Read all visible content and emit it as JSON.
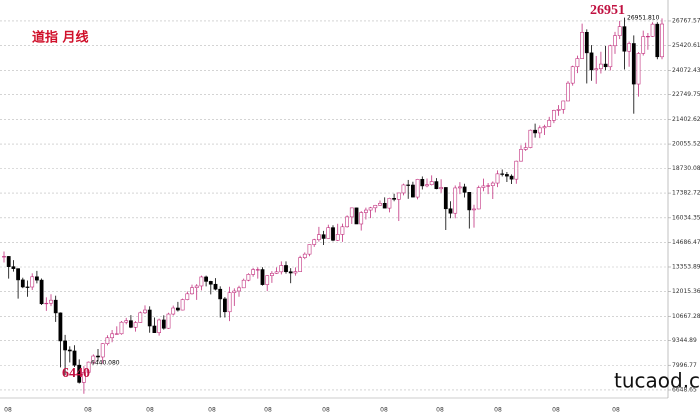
{
  "chart_data": {
    "type": "candlestick",
    "title": "道指  月线",
    "up_color": "#c2307e",
    "down_color": "#000000",
    "ylim": [
      5830,
      27910
    ],
    "yticks": [
      26767.57,
      25420.61,
      24072.43,
      22749.75,
      21402.62,
      20055.52,
      18730.08,
      17382.72,
      16034.35,
      14686.47,
      13353.89,
      12015.36,
      10667.28,
      9344.89,
      7996.77,
      6648.65
    ],
    "grid": true,
    "x_labels": [
      "08",
      "08",
      "08",
      "08",
      "08",
      "08",
      "08",
      "08",
      "08",
      "08",
      "08"
    ],
    "annotations": {
      "high": "26951",
      "high_small": "26951.810",
      "low": "6440",
      "low_small": "6440.080"
    },
    "watermark": "tucaod.com",
    "candles": [
      [
        13895,
        14200,
        13600,
        13930
      ],
      [
        13930,
        13950,
        12720,
        13372
      ],
      [
        13372,
        13730,
        13100,
        13265
      ],
      [
        13265,
        13280,
        11630,
        12650
      ],
      [
        12650,
        12770,
        12200,
        12266
      ],
      [
        12266,
        12620,
        11730,
        12263
      ],
      [
        12263,
        13010,
        12100,
        12820
      ],
      [
        12820,
        13140,
        12460,
        12638
      ],
      [
        12638,
        12730,
        11280,
        11350
      ],
      [
        11350,
        11700,
        10960,
        11378
      ],
      [
        11378,
        11870,
        11220,
        11544
      ],
      [
        11544,
        11790,
        10360,
        10851
      ],
      [
        10851,
        10880,
        7880,
        9325
      ],
      [
        9325,
        9650,
        7450,
        8829
      ],
      [
        8829,
        9030,
        8150,
        8776
      ],
      [
        8776,
        9090,
        7900,
        8001
      ],
      [
        8001,
        8320,
        7000,
        7063
      ],
      [
        7063,
        7950,
        6440.08,
        7609
      ],
      [
        7609,
        8200,
        7440,
        8168
      ],
      [
        8168,
        8590,
        8050,
        8500
      ],
      [
        8500,
        8880,
        8210,
        8447
      ],
      [
        8447,
        9200,
        8090,
        9172
      ],
      [
        9172,
        9630,
        9080,
        9496
      ],
      [
        9496,
        9920,
        9250,
        9712
      ],
      [
        9712,
        10120,
        9670,
        9713
      ],
      [
        9713,
        10410,
        9660,
        10344
      ],
      [
        10344,
        10580,
        10230,
        10428
      ],
      [
        10428,
        10730,
        10020,
        10067
      ],
      [
        10067,
        10400,
        9830,
        10325
      ],
      [
        10325,
        10930,
        10300,
        10857
      ],
      [
        10857,
        11260,
        10790,
        11009
      ],
      [
        11009,
        11210,
        9770,
        10137
      ],
      [
        10137,
        10600,
        9760,
        9774
      ],
      [
        9774,
        10540,
        9610,
        10466
      ],
      [
        10466,
        10720,
        9940,
        10015
      ],
      [
        10015,
        10860,
        9980,
        10788
      ],
      [
        10788,
        11250,
        10710,
        11118
      ],
      [
        11118,
        11450,
        10930,
        11006
      ],
      [
        11006,
        11630,
        10990,
        11578
      ],
      [
        11578,
        12020,
        11540,
        11892
      ],
      [
        11892,
        12390,
        11850,
        12226
      ],
      [
        12226,
        12420,
        11560,
        12320
      ],
      [
        12320,
        12880,
        12080,
        12811
      ],
      [
        12811,
        12880,
        12300,
        12570
      ],
      [
        12570,
        12600,
        11860,
        12414
      ],
      [
        12414,
        12750,
        12080,
        12143
      ],
      [
        12143,
        12300,
        10600,
        11614
      ],
      [
        11614,
        11720,
        10600,
        10913
      ],
      [
        10913,
        12280,
        10400,
        11955
      ],
      [
        11955,
        12190,
        11230,
        12046
      ],
      [
        12046,
        12330,
        11730,
        12218
      ],
      [
        12218,
        12720,
        12210,
        12633
      ],
      [
        12633,
        13010,
        12580,
        12952
      ],
      [
        12952,
        13300,
        12820,
        13212
      ],
      [
        13212,
        13340,
        12720,
        13214
      ],
      [
        13214,
        13340,
        12340,
        12393
      ],
      [
        12393,
        12900,
        12040,
        12880
      ],
      [
        12880,
        13130,
        12490,
        13009
      ],
      [
        13009,
        13330,
        12980,
        13091
      ],
      [
        13091,
        13660,
        12950,
        13437
      ],
      [
        13437,
        13660,
        12990,
        13096
      ],
      [
        13096,
        13290,
        12470,
        13026
      ],
      [
        13026,
        13330,
        12880,
        13104
      ],
      [
        13104,
        13970,
        13100,
        13861
      ],
      [
        13861,
        14150,
        13780,
        14054
      ],
      [
        14054,
        14590,
        13940,
        14579
      ],
      [
        14579,
        14890,
        14450,
        14840
      ],
      [
        14840,
        15540,
        14740,
        15116
      ],
      [
        15116,
        15320,
        14550,
        14910
      ],
      [
        14910,
        15660,
        14900,
        15500
      ],
      [
        15500,
        15630,
        14760,
        14810
      ],
      [
        14810,
        15710,
        14770,
        15130
      ],
      [
        15130,
        15720,
        14720,
        15546
      ],
      [
        15546,
        16170,
        15500,
        16086
      ],
      [
        16086,
        16590,
        15700,
        16577
      ],
      [
        16577,
        16590,
        15700,
        15699
      ],
      [
        15699,
        16400,
        15340,
        16322
      ],
      [
        16322,
        16590,
        15940,
        16458
      ],
      [
        16458,
        16630,
        16020,
        16581
      ],
      [
        16581,
        16740,
        16330,
        16717
      ],
      [
        16717,
        16980,
        16690,
        16827
      ],
      [
        16827,
        17150,
        16560,
        16563
      ],
      [
        16563,
        17130,
        16330,
        17098
      ],
      [
        17098,
        17350,
        16940,
        17043
      ],
      [
        17043,
        17400,
        15860,
        17391
      ],
      [
        17391,
        17900,
        17260,
        17828
      ],
      [
        17828,
        18100,
        17070,
        17823
      ],
      [
        17823,
        18000,
        17140,
        17165
      ],
      [
        17165,
        18160,
        17040,
        18133
      ],
      [
        18133,
        18290,
        17580,
        17776
      ],
      [
        17776,
        18180,
        17700,
        17841
      ],
      [
        17841,
        18350,
        17800,
        18011
      ],
      [
        18011,
        18200,
        17590,
        17620
      ],
      [
        17620,
        18140,
        17400,
        17690
      ],
      [
        17690,
        17700,
        15370,
        16528
      ],
      [
        16528,
        16940,
        16010,
        16285
      ],
      [
        16285,
        17800,
        16010,
        17664
      ],
      [
        17664,
        17980,
        17330,
        17720
      ],
      [
        17720,
        17890,
        17140,
        17425
      ],
      [
        17425,
        17430,
        15450,
        16466
      ],
      [
        16466,
        16750,
        15500,
        16517
      ],
      [
        16517,
        17790,
        16500,
        17685
      ],
      [
        17685,
        18170,
        17480,
        17774
      ],
      [
        17774,
        17930,
        17330,
        17787
      ],
      [
        17787,
        18020,
        17060,
        17930
      ],
      [
        17930,
        18620,
        17710,
        18432
      ],
      [
        18432,
        18670,
        18290,
        18401
      ],
      [
        18401,
        18530,
        17990,
        18308
      ],
      [
        18308,
        18400,
        17880,
        18142
      ],
      [
        18142,
        19150,
        17890,
        19124
      ],
      [
        19124,
        19990,
        19100,
        19763
      ],
      [
        19763,
        20130,
        19680,
        19864
      ],
      [
        19864,
        20850,
        19830,
        20812
      ],
      [
        20812,
        21170,
        20410,
        20663
      ],
      [
        20663,
        21070,
        20380,
        20941
      ],
      [
        20941,
        21110,
        20550,
        21009
      ],
      [
        21009,
        21540,
        20980,
        21350
      ],
      [
        21350,
        21930,
        21200,
        21891
      ],
      [
        21891,
        22180,
        21600,
        21948
      ],
      [
        21948,
        22420,
        21710,
        22405
      ],
      [
        22405,
        23490,
        22400,
        23377
      ],
      [
        23377,
        24330,
        23240,
        24272
      ],
      [
        24272,
        24880,
        23920,
        24719
      ],
      [
        24719,
        26620,
        24740,
        26149
      ],
      [
        26149,
        26310,
        23360,
        25029
      ],
      [
        25029,
        25450,
        23510,
        24103
      ],
      [
        24103,
        24860,
        23340,
        24163
      ],
      [
        24163,
        25090,
        23900,
        24416
      ],
      [
        24416,
        25400,
        24080,
        24271
      ],
      [
        24271,
        25470,
        24070,
        25415
      ],
      [
        25415,
        26170,
        24970,
        25965
      ],
      [
        25965,
        26770,
        25780,
        26458
      ],
      [
        26458,
        26951.81,
        24120,
        25116
      ],
      [
        25116,
        25650,
        24270,
        25538
      ],
      [
        25538,
        25980,
        21712,
        23327
      ],
      [
        23327,
        25070,
        22640,
        24999
      ],
      [
        24999,
        26240,
        24880,
        25916
      ],
      [
        25916,
        26110,
        25200,
        25929
      ],
      [
        25929,
        26700,
        25900,
        26593
      ],
      [
        26593,
        26700,
        24680,
        24815
      ],
      [
        24815,
        26910,
        24680,
        26600
      ]
    ]
  }
}
